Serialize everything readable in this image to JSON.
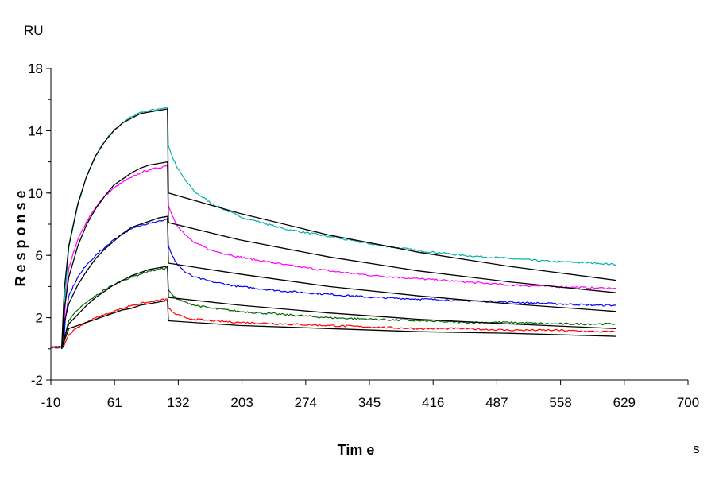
{
  "chart_data": {
    "type": "line",
    "title": "",
    "xlabel": "Tim e",
    "ylabel": "R e s p o n s e",
    "x_unit": "s",
    "y_unit": "RU",
    "xlim": [
      -10,
      700
    ],
    "ylim": [
      -2,
      18
    ],
    "x_ticks": [
      "-10",
      "61",
      "132",
      "203",
      "274",
      "345",
      "416",
      "487",
      "558",
      "629",
      "700"
    ],
    "y_ticks": [
      "-2",
      "2",
      "6",
      "10",
      "14",
      "18"
    ],
    "grid": false,
    "legend": "none",
    "series": [
      {
        "color": "#00b0b0",
        "kind": "measured",
        "x": [
          -10,
          2,
          4,
          6,
          10,
          20,
          30,
          40,
          50,
          60,
          70,
          80,
          90,
          100,
          110,
          120,
          121,
          125,
          130,
          140,
          150,
          170,
          200,
          250,
          300,
          350,
          400,
          450,
          500,
          550,
          600,
          620
        ],
        "y": [
          0.1,
          0.1,
          0.1,
          3.5,
          6.5,
          9.2,
          11.1,
          12.4,
          13.3,
          14.0,
          14.5,
          14.9,
          15.2,
          15.3,
          15.4,
          15.5,
          13.0,
          12.4,
          11.7,
          10.8,
          10.1,
          9.3,
          8.5,
          7.7,
          7.2,
          6.7,
          6.3,
          6.0,
          5.8,
          5.6,
          5.5,
          5.4
        ]
      },
      {
        "color": "#ff00ff",
        "kind": "measured",
        "x": [
          -10,
          2,
          4,
          6,
          10,
          20,
          30,
          40,
          50,
          60,
          70,
          80,
          90,
          100,
          110,
          120,
          121,
          125,
          130,
          140,
          150,
          170,
          200,
          250,
          300,
          350,
          400,
          450,
          500,
          550,
          600,
          620
        ],
        "y": [
          0.1,
          0.1,
          0.1,
          2.8,
          5.2,
          7.0,
          8.2,
          9.1,
          9.8,
          10.3,
          10.7,
          11.0,
          11.3,
          11.5,
          11.6,
          11.8,
          9.2,
          8.6,
          8.0,
          7.3,
          6.8,
          6.3,
          5.9,
          5.4,
          5.0,
          4.7,
          4.5,
          4.3,
          4.1,
          4.0,
          3.9,
          3.9
        ]
      },
      {
        "color": "#0000ff",
        "kind": "measured",
        "x": [
          -10,
          2,
          4,
          6,
          10,
          20,
          30,
          40,
          50,
          60,
          70,
          80,
          90,
          100,
          110,
          120,
          121,
          125,
          130,
          140,
          150,
          170,
          200,
          250,
          300,
          350,
          400,
          450,
          500,
          550,
          600,
          620
        ],
        "y": [
          0.1,
          0.1,
          0.1,
          1.8,
          3.4,
          4.6,
          5.4,
          6.0,
          6.5,
          7.0,
          7.4,
          7.7,
          7.9,
          8.1,
          8.2,
          8.3,
          6.6,
          6.0,
          5.5,
          4.9,
          4.6,
          4.3,
          4.0,
          3.7,
          3.5,
          3.3,
          3.2,
          3.1,
          3.0,
          2.9,
          2.8,
          2.8
        ]
      },
      {
        "color": "#006400",
        "kind": "measured",
        "x": [
          -10,
          2,
          4,
          6,
          10,
          20,
          30,
          40,
          50,
          60,
          70,
          80,
          90,
          100,
          110,
          120,
          121,
          125,
          130,
          140,
          150,
          170,
          200,
          250,
          300,
          350,
          400,
          450,
          500,
          550,
          600,
          620
        ],
        "y": [
          0.1,
          0.1,
          0.1,
          0.9,
          1.8,
          2.5,
          3.0,
          3.4,
          3.8,
          4.1,
          4.4,
          4.6,
          4.8,
          5.0,
          5.1,
          5.2,
          3.8,
          3.5,
          3.2,
          3.0,
          2.8,
          2.6,
          2.4,
          2.2,
          2.0,
          1.9,
          1.8,
          1.7,
          1.7,
          1.6,
          1.6,
          1.6
        ]
      },
      {
        "color": "#ff0000",
        "kind": "measured",
        "x": [
          -10,
          2,
          4,
          6,
          10,
          20,
          30,
          40,
          50,
          60,
          70,
          80,
          90,
          100,
          110,
          120,
          121,
          125,
          130,
          140,
          150,
          170,
          200,
          250,
          300,
          350,
          400,
          450,
          500,
          550,
          600,
          620
        ],
        "y": [
          0.1,
          0.1,
          0.1,
          0.4,
          0.9,
          1.4,
          1.7,
          2.0,
          2.2,
          2.4,
          2.6,
          2.8,
          2.9,
          3.0,
          3.1,
          3.2,
          2.6,
          2.4,
          2.2,
          2.0,
          1.9,
          1.8,
          1.7,
          1.6,
          1.5,
          1.4,
          1.3,
          1.3,
          1.2,
          1.2,
          1.1,
          1.1
        ]
      },
      {
        "color": "#000000",
        "kind": "fit",
        "x": [
          2,
          5,
          10,
          20,
          30,
          40,
          50,
          60,
          70,
          80,
          90,
          100,
          110,
          120,
          121,
          200,
          300,
          400,
          500,
          620
        ],
        "y": [
          0.0,
          3.8,
          6.6,
          9.3,
          11.1,
          12.4,
          13.3,
          14.0,
          14.5,
          14.8,
          15.1,
          15.2,
          15.3,
          15.4,
          10.0,
          8.7,
          7.3,
          6.2,
          5.3,
          4.4
        ]
      },
      {
        "color": "#000000",
        "kind": "fit",
        "x": [
          2,
          5,
          10,
          20,
          30,
          40,
          50,
          60,
          70,
          80,
          90,
          100,
          110,
          120,
          121,
          200,
          300,
          400,
          500,
          620
        ],
        "y": [
          0.0,
          2.5,
          4.6,
          6.6,
          8.0,
          9.0,
          9.8,
          10.5,
          10.9,
          11.3,
          11.6,
          11.8,
          11.9,
          12.0,
          8.1,
          7.0,
          5.9,
          5.0,
          4.3,
          3.6
        ]
      },
      {
        "color": "#000000",
        "kind": "fit",
        "x": [
          2,
          5,
          10,
          20,
          30,
          40,
          50,
          60,
          70,
          80,
          90,
          100,
          110,
          120,
          121,
          200,
          300,
          400,
          500,
          620
        ],
        "y": [
          0.0,
          1.7,
          2.9,
          4.1,
          5.0,
          5.8,
          6.4,
          6.9,
          7.4,
          7.8,
          8.0,
          8.2,
          8.4,
          8.5,
          5.5,
          4.8,
          4.0,
          3.4,
          2.9,
          2.4
        ]
      },
      {
        "color": "#000000",
        "kind": "fit",
        "x": [
          2,
          5,
          10,
          20,
          30,
          40,
          50,
          60,
          70,
          80,
          90,
          100,
          110,
          120,
          121,
          200,
          300,
          400,
          500,
          620
        ],
        "y": [
          0.0,
          0.7,
          1.6,
          2.2,
          2.8,
          3.3,
          3.7,
          4.1,
          4.4,
          4.7,
          4.9,
          5.1,
          5.2,
          5.3,
          3.3,
          2.8,
          2.3,
          1.9,
          1.6,
          1.3
        ]
      },
      {
        "color": "#000000",
        "kind": "fit",
        "x": [
          2,
          5,
          10,
          20,
          30,
          40,
          50,
          60,
          70,
          80,
          90,
          100,
          110,
          120,
          121,
          200,
          300,
          400,
          500,
          620
        ],
        "y": [
          0.0,
          0.5,
          1.3,
          1.5,
          1.7,
          1.9,
          2.1,
          2.3,
          2.5,
          2.6,
          2.8,
          2.9,
          3.0,
          3.1,
          1.8,
          1.5,
          1.3,
          1.1,
          1.0,
          0.8
        ]
      }
    ]
  }
}
